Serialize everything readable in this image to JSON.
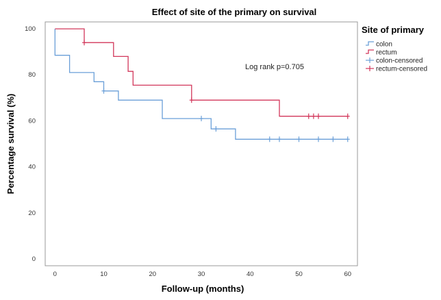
{
  "chart_data": {
    "type": "line",
    "title": "Effect of site of the primary on survival",
    "xlabel": "Follow-up (months)",
    "ylabel": "Percentage survival (%)",
    "xlim": [
      -2,
      62
    ],
    "ylim": [
      -3,
      103
    ],
    "xticks": [
      0,
      10,
      20,
      30,
      40,
      50,
      60
    ],
    "yticks": [
      0,
      20,
      40,
      60,
      80,
      100
    ],
    "grid": false,
    "legend_title": "Site of primary",
    "legend_placement": "right",
    "legend_entries": [
      "colon",
      "rectum",
      "colon-censored",
      "rectum-censored"
    ],
    "annotation": "Log rank p=0.705",
    "series": [
      {
        "name": "colon",
        "color": "#6a9fd8",
        "step_points": [
          [
            0,
            100
          ],
          [
            0,
            88.5
          ],
          [
            3,
            88.5
          ],
          [
            3,
            81
          ],
          [
            8,
            81
          ],
          [
            8,
            77
          ],
          [
            10,
            77
          ],
          [
            10,
            73
          ],
          [
            13,
            73
          ],
          [
            13,
            69
          ],
          [
            22,
            69
          ],
          [
            22,
            61
          ],
          [
            32,
            61
          ],
          [
            32,
            56.5
          ],
          [
            37,
            56.5
          ],
          [
            37,
            52
          ],
          [
            60,
            52
          ]
        ],
        "censored": [
          [
            10,
            73
          ],
          [
            30,
            61
          ],
          [
            33,
            56.5
          ],
          [
            44,
            52
          ],
          [
            46,
            52
          ],
          [
            50,
            52
          ],
          [
            54,
            52
          ],
          [
            57,
            52
          ],
          [
            60,
            52
          ]
        ]
      },
      {
        "name": "rectum",
        "color": "#d2365a",
        "step_points": [
          [
            0,
            100
          ],
          [
            6,
            100
          ],
          [
            6,
            94
          ],
          [
            12,
            94
          ],
          [
            12,
            88
          ],
          [
            15,
            88
          ],
          [
            15,
            81.5
          ],
          [
            16,
            81.5
          ],
          [
            16,
            75.5
          ],
          [
            28,
            75.5
          ],
          [
            28,
            69
          ],
          [
            46,
            69
          ],
          [
            46,
            62
          ],
          [
            60,
            62
          ]
        ],
        "censored": [
          [
            6,
            94
          ],
          [
            28,
            69
          ],
          [
            52,
            62
          ],
          [
            53,
            62
          ],
          [
            54,
            62
          ],
          [
            60,
            62
          ]
        ]
      }
    ]
  }
}
